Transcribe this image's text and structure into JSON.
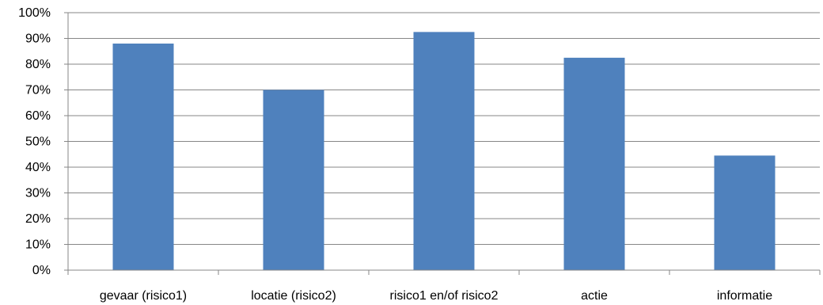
{
  "chart_data": {
    "type": "bar",
    "categories": [
      "gevaar (risico1)",
      "locatie (risico2)",
      "risico1 en/of risico2",
      "actie",
      "informatie"
    ],
    "values": [
      88,
      70,
      92.5,
      82.5,
      44.5
    ],
    "y_tick_labels": [
      "0%",
      "10%",
      "20%",
      "30%",
      "40%",
      "50%",
      "60%",
      "70%",
      "80%",
      "90%",
      "100%"
    ],
    "ylim": [
      0,
      100
    ],
    "y_unit": "%",
    "grid": "horizontal",
    "legend": "none",
    "colors": {
      "bar": "#4f81bd",
      "grid": "#878787",
      "axis": "#878787",
      "text": "#000000"
    }
  }
}
